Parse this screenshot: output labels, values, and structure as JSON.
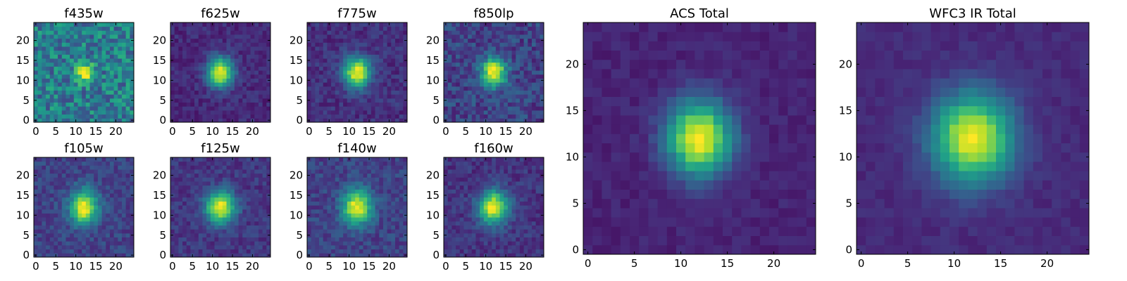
{
  "chart_data": [
    {
      "type": "heatmap",
      "title": "f435w",
      "colormap": "viridis",
      "grid": false,
      "xlim": [
        -0.5,
        24.5
      ],
      "ylim": [
        -0.5,
        24.5
      ],
      "xticks": [
        0,
        5,
        10,
        15,
        20
      ],
      "yticks": [
        0,
        5,
        10,
        15,
        20
      ],
      "blob": {
        "center": [
          12,
          12
        ],
        "sigma": [
          1.6,
          1.6
        ],
        "peak": 1.0,
        "background": 0.42,
        "noise": 0.2
      }
    },
    {
      "type": "heatmap",
      "title": "f625w",
      "colormap": "viridis",
      "grid": false,
      "xlim": [
        -0.5,
        24.5
      ],
      "ylim": [
        -0.5,
        24.5
      ],
      "xticks": [
        0,
        5,
        10,
        15,
        20
      ],
      "yticks": [
        0,
        5,
        10,
        15,
        20
      ],
      "blob": {
        "center": [
          12,
          12
        ],
        "sigma": [
          2.2,
          2.6
        ],
        "peak": 1.0,
        "background": 0.12,
        "noise": 0.07
      }
    },
    {
      "type": "heatmap",
      "title": "f775w",
      "colormap": "viridis",
      "grid": false,
      "xlim": [
        -0.5,
        24.5
      ],
      "ylim": [
        -0.5,
        24.5
      ],
      "xticks": [
        0,
        5,
        10,
        15,
        20
      ],
      "yticks": [
        0,
        5,
        10,
        15,
        20
      ],
      "blob": {
        "center": [
          12,
          12
        ],
        "sigma": [
          2.3,
          2.7
        ],
        "peak": 1.0,
        "background": 0.14,
        "noise": 0.08
      }
    },
    {
      "type": "heatmap",
      "title": "f850lp",
      "colormap": "viridis",
      "grid": false,
      "xlim": [
        -0.5,
        24.5
      ],
      "ylim": [
        -0.5,
        24.5
      ],
      "xticks": [
        0,
        5,
        10,
        15,
        20
      ],
      "yticks": [
        0,
        5,
        10,
        15,
        20
      ],
      "blob": {
        "center": [
          12,
          12
        ],
        "sigma": [
          2.2,
          2.6
        ],
        "peak": 1.0,
        "background": 0.2,
        "noise": 0.12
      }
    },
    {
      "type": "heatmap",
      "title": "f105w",
      "colormap": "viridis",
      "grid": false,
      "xlim": [
        -0.5,
        24.5
      ],
      "ylim": [
        -0.5,
        24.5
      ],
      "xticks": [
        0,
        5,
        10,
        15,
        20
      ],
      "yticks": [
        0,
        5,
        10,
        15,
        20
      ],
      "blob": {
        "center": [
          12,
          12
        ],
        "sigma": [
          2.4,
          3.0
        ],
        "peak": 1.0,
        "background": 0.2,
        "noise": 0.09
      }
    },
    {
      "type": "heatmap",
      "title": "f125w",
      "colormap": "viridis",
      "grid": false,
      "xlim": [
        -0.5,
        24.5
      ],
      "ylim": [
        -0.5,
        24.5
      ],
      "xticks": [
        0,
        5,
        10,
        15,
        20
      ],
      "yticks": [
        0,
        5,
        10,
        15,
        20
      ],
      "blob": {
        "center": [
          12,
          12
        ],
        "sigma": [
          2.6,
          2.8
        ],
        "peak": 1.0,
        "background": 0.16,
        "noise": 0.08
      }
    },
    {
      "type": "heatmap",
      "title": "f140w",
      "colormap": "viridis",
      "grid": false,
      "xlim": [
        -0.5,
        24.5
      ],
      "ylim": [
        -0.5,
        24.5
      ],
      "xticks": [
        0,
        5,
        10,
        15,
        20
      ],
      "yticks": [
        0,
        5,
        10,
        15,
        20
      ],
      "blob": {
        "center": [
          12,
          12
        ],
        "sigma": [
          2.5,
          3.0
        ],
        "peak": 1.0,
        "background": 0.2,
        "noise": 0.09
      }
    },
    {
      "type": "heatmap",
      "title": "f160w",
      "colormap": "viridis",
      "grid": false,
      "xlim": [
        -0.5,
        24.5
      ],
      "ylim": [
        -0.5,
        24.5
      ],
      "xticks": [
        0,
        5,
        10,
        15,
        20
      ],
      "yticks": [
        0,
        5,
        10,
        15,
        20
      ],
      "blob": {
        "center": [
          12,
          12
        ],
        "sigma": [
          2.6,
          2.9
        ],
        "peak": 1.0,
        "background": 0.15,
        "noise": 0.08
      }
    },
    {
      "type": "heatmap",
      "title": "ACS Total",
      "colormap": "viridis",
      "grid": false,
      "xlim": [
        -0.5,
        24.5
      ],
      "ylim": [
        -0.5,
        24.5
      ],
      "xticks": [
        0,
        5,
        10,
        15,
        20
      ],
      "yticks": [
        0,
        5,
        10,
        15,
        20
      ],
      "blob": {
        "center": [
          12,
          12
        ],
        "sigma": [
          2.4,
          2.8
        ],
        "peak": 1.0,
        "background": 0.1,
        "noise": 0.04
      }
    },
    {
      "type": "heatmap",
      "title": "WFC3 IR Total",
      "colormap": "viridis",
      "grid": false,
      "xlim": [
        -0.5,
        24.5
      ],
      "ylim": [
        -0.5,
        24.5
      ],
      "xticks": [
        0,
        5,
        10,
        15,
        20
      ],
      "yticks": [
        0,
        5,
        10,
        15,
        20
      ],
      "blob": {
        "center": [
          12,
          12
        ],
        "sigma": [
          3.0,
          3.3
        ],
        "peak": 1.0,
        "background": 0.12,
        "noise": 0.035
      }
    }
  ]
}
